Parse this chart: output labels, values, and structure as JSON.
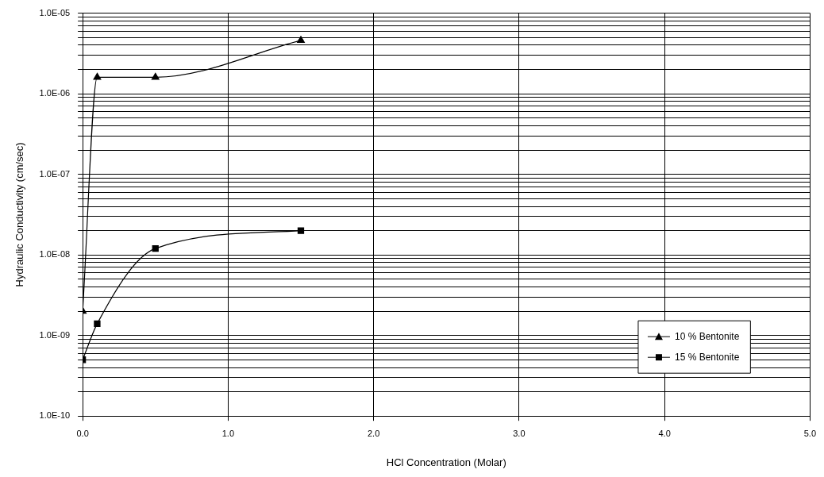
{
  "chart_data": {
    "type": "line",
    "xlabel": "HCl Concentration (Molar)",
    "ylabel": "Hydraulic Conductivity (cm/sec)",
    "x": [
      0,
      0.1,
      0.5,
      1.5
    ],
    "series": [
      {
        "name": "10 % Bentonite",
        "color": "#000000",
        "marker": "triangle",
        "values": [
          2e-09,
          1.6e-06,
          1.6e-06,
          4.6e-06
        ]
      },
      {
        "name": "15 % Bentonite",
        "color": "#000000",
        "marker": "square",
        "values": [
          5e-10,
          1.4e-09,
          1.2e-08,
          2e-08
        ]
      }
    ],
    "log": "y",
    "xlim": [
      0,
      5
    ],
    "xticks": [
      {
        "value": 0,
        "label": "0.0"
      },
      {
        "value": 1,
        "label": "1.0"
      },
      {
        "value": 2,
        "label": "2.0"
      },
      {
        "value": 3,
        "label": "3.0"
      },
      {
        "value": 4,
        "label": "4.0"
      },
      {
        "value": 5,
        "label": "5.0"
      }
    ],
    "ylim": [
      1e-10,
      1e-05
    ],
    "yticks": [
      {
        "value": 1e-10,
        "label": "1.0E-10"
      },
      {
        "value": 2e-10,
        "label": null
      },
      {
        "value": 3e-10,
        "label": null
      },
      {
        "value": 4e-10,
        "label": null
      },
      {
        "value": 5e-10,
        "label": null
      },
      {
        "value": 6e-10,
        "label": null
      },
      {
        "value": 7e-10,
        "label": null
      },
      {
        "value": 8e-10,
        "label": null
      },
      {
        "value": 9e-10,
        "label": null
      },
      {
        "value": 1e-09,
        "label": "1.0E-09"
      },
      {
        "value": 2e-09,
        "label": null
      },
      {
        "value": 3e-09,
        "label": null
      },
      {
        "value": 4e-09,
        "label": null
      },
      {
        "value": 5e-09,
        "label": null
      },
      {
        "value": 6e-09,
        "label": null
      },
      {
        "value": 7e-09,
        "label": null
      },
      {
        "value": 8e-09,
        "label": null
      },
      {
        "value": 9e-09,
        "label": null
      },
      {
        "value": 1e-08,
        "label": "1.0E-08"
      },
      {
        "value": 2e-08,
        "label": null
      },
      {
        "value": 3e-08,
        "label": null
      },
      {
        "value": 4e-08,
        "label": null
      },
      {
        "value": 5e-08,
        "label": null
      },
      {
        "value": 6e-08,
        "label": null
      },
      {
        "value": 7e-08,
        "label": null
      },
      {
        "value": 8e-08,
        "label": null
      },
      {
        "value": 9e-08,
        "label": null
      },
      {
        "value": 1e-07,
        "label": "1.0E-07"
      },
      {
        "value": 2e-07,
        "label": null
      },
      {
        "value": 3e-07,
        "label": null
      },
      {
        "value": 4e-07,
        "label": null
      },
      {
        "value": 5e-07,
        "label": null
      },
      {
        "value": 6e-07,
        "label": null
      },
      {
        "value": 7e-07,
        "label": null
      },
      {
        "value": 8e-07,
        "label": null
      },
      {
        "value": 9e-07,
        "label": null
      },
      {
        "value": 1e-06,
        "label": "1.0E-06"
      },
      {
        "value": 2e-06,
        "label": null
      },
      {
        "value": 3e-06,
        "label": null
      },
      {
        "value": 4e-06,
        "label": null
      },
      {
        "value": 5e-06,
        "label": null
      },
      {
        "value": 6e-06,
        "label": null
      },
      {
        "value": 7e-06,
        "label": null
      },
      {
        "value": 8e-06,
        "label": null
      },
      {
        "value": 9e-06,
        "label": null
      },
      {
        "value": 1e-05,
        "label": "1.0E-05"
      }
    ],
    "grid": true,
    "legend": "bottom right",
    "line_style": "solid"
  }
}
